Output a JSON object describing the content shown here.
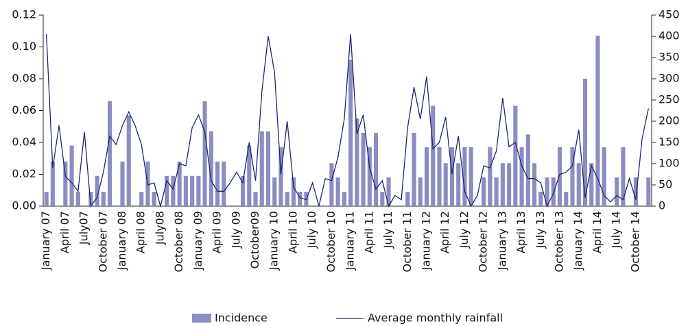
{
  "chart_data": {
    "type": "bar-line",
    "categories": [
      "January 07",
      null,
      null,
      "April 07",
      null,
      null,
      "July07",
      null,
      null,
      "October 07",
      null,
      null,
      "January 08",
      null,
      null,
      "April 08",
      null,
      null,
      "July08",
      null,
      null,
      "October 08",
      null,
      null,
      "January 09",
      null,
      null,
      "April 09",
      null,
      null,
      "July 09",
      null,
      null,
      "October09",
      null,
      null,
      "January 10",
      null,
      null,
      "April 10",
      null,
      null,
      "July 10",
      null,
      null,
      "October 10",
      null,
      null,
      "January 11",
      null,
      null,
      "April 11",
      null,
      null,
      "July 11",
      null,
      null,
      "October 11",
      null,
      null,
      "January 12",
      null,
      null,
      "April 12",
      null,
      null,
      "July 12",
      null,
      null,
      "October 12",
      null,
      null,
      "January 13",
      null,
      null,
      "April 13",
      null,
      null,
      "July 13",
      null,
      null,
      "October 13",
      null,
      null,
      "January 14",
      null,
      null,
      "April 14",
      null,
      null,
      "July 14",
      null,
      null,
      "October 14",
      null,
      null
    ],
    "series": [
      {
        "name": "Incidence",
        "color": "#8b8cc2",
        "kind": "bar",
        "axis": "y",
        "values": [
          0.009,
          0.028,
          0,
          0.028,
          0.038,
          0.009,
          0,
          0.009,
          0.019,
          0.009,
          0.066,
          0,
          0.028,
          0.057,
          0,
          0.009,
          0.028,
          0.009,
          0,
          0.019,
          0.019,
          0.028,
          0.019,
          0.019,
          0.019,
          0.066,
          0.047,
          0.028,
          0.028,
          0,
          0,
          0.019,
          0.038,
          0.009,
          0.047,
          0.047,
          0.018,
          0.037,
          0.009,
          0.018,
          0.009,
          0.009,
          0,
          0,
          0,
          0.027,
          0.018,
          0.009,
          0.092,
          0.055,
          0.046,
          0.037,
          0.046,
          0.009,
          0.018,
          0,
          0,
          0.009,
          0.046,
          0.018,
          0.037,
          0.063,
          0.037,
          0.027,
          0.037,
          0.027,
          0.037,
          0.037,
          0,
          0.018,
          0.037,
          0.018,
          0.027,
          0.027,
          0.063,
          0.037,
          0.045,
          0.027,
          0.009,
          0.018,
          0.018,
          0.037,
          0.009,
          0.037,
          0.027,
          0.08,
          0.027,
          0.107,
          0.037,
          0,
          0.018,
          0.037,
          0,
          0.018,
          0,
          0.018
        ]
      },
      {
        "name": "Average monthly rainfall",
        "color": "#1c2570",
        "kind": "line",
        "axis": "y2",
        "values": [
          405,
          90,
          190,
          70,
          55,
          35,
          175,
          0,
          20,
          80,
          165,
          145,
          190,
          222,
          190,
          145,
          50,
          55,
          0,
          60,
          40,
          100,
          95,
          185,
          215,
          175,
          60,
          35,
          35,
          55,
          80,
          55,
          150,
          60,
          270,
          400,
          315,
          75,
          200,
          45,
          20,
          15,
          55,
          0,
          65,
          60,
          115,
          205,
          405,
          170,
          215,
          90,
          40,
          60,
          0,
          25,
          15,
          185,
          280,
          205,
          305,
          135,
          150,
          210,
          75,
          165,
          35,
          0,
          25,
          95,
          90,
          130,
          255,
          140,
          150,
          95,
          65,
          65,
          55,
          0,
          30,
          75,
          80,
          95,
          180,
          20,
          95,
          65,
          25,
          10,
          25,
          15,
          65,
          15,
          160,
          230
        ]
      }
    ],
    "ylim": [
      0,
      0.12
    ],
    "yticks": [
      {
        "value": 0,
        "label": "0.00"
      },
      0.02,
      0.04,
      0.06,
      0.08,
      {
        "value": 0.1,
        "label": "0.10"
      },
      0.12
    ],
    "y2lim": [
      0,
      450
    ],
    "y2ticks": [
      0,
      50,
      100,
      150,
      200,
      250,
      300,
      350,
      400,
      450
    ],
    "legend": "bottom"
  }
}
